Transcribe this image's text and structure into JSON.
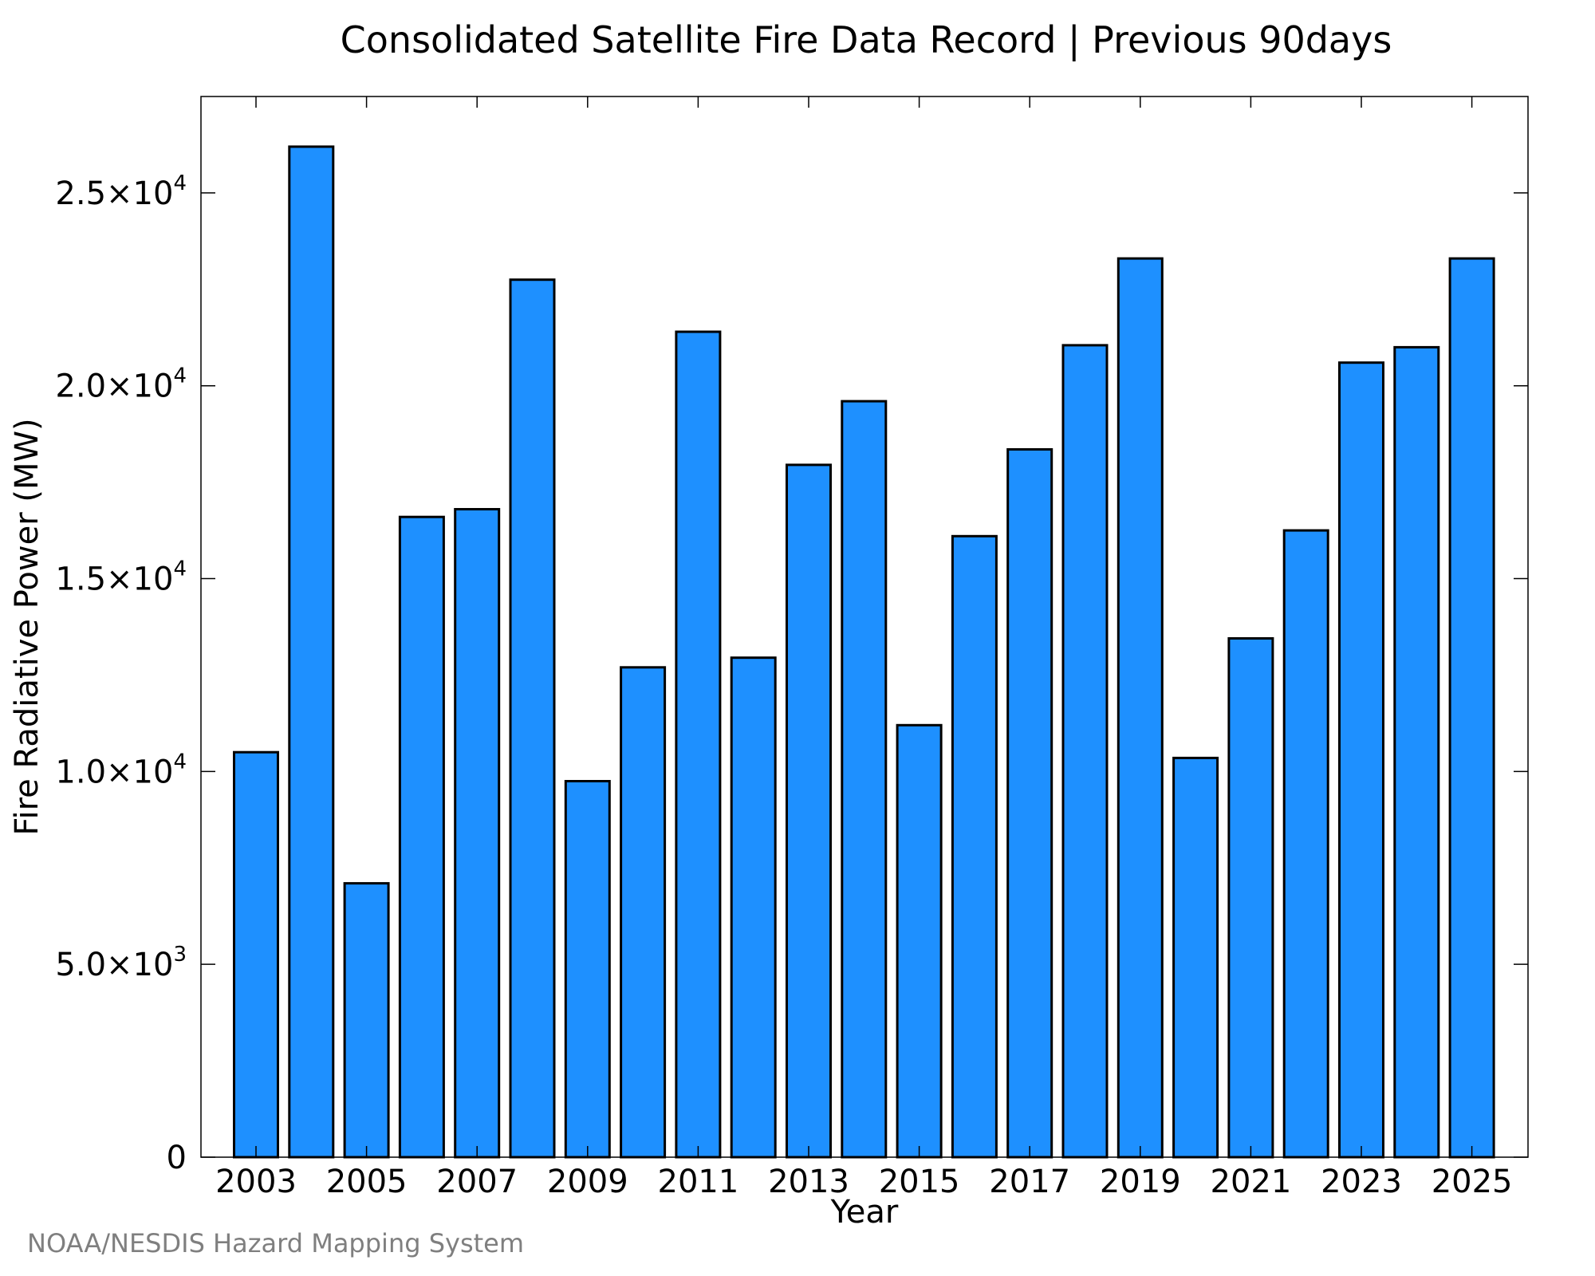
{
  "chart_data": {
    "type": "bar",
    "title": "Consolidated Satellite Fire Data Record | Previous 90days",
    "xlabel": "Year",
    "ylabel": "Fire Radiative Power (MW)",
    "categories": [
      "2003",
      "2004",
      "2005",
      "2006",
      "2007",
      "2008",
      "2009",
      "2010",
      "2011",
      "2012",
      "2013",
      "2014",
      "2015",
      "2016",
      "2017",
      "2018",
      "2019",
      "2020",
      "2021",
      "2022",
      "2023",
      "2024",
      "2025"
    ],
    "values": [
      10500,
      26200,
      7100,
      16600,
      16800,
      22750,
      9750,
      12700,
      21400,
      12950,
      17950,
      19600,
      11200,
      16100,
      18350,
      21050,
      23300,
      10350,
      13450,
      16250,
      20600,
      21000,
      23300
    ],
    "x_tick_labels": [
      "2003",
      "2005",
      "2007",
      "2009",
      "2011",
      "2013",
      "2015",
      "2017",
      "2019",
      "2021",
      "2023",
      "2025"
    ],
    "ylim": [
      0,
      27500
    ],
    "y_ticks": [
      {
        "value": 0,
        "mantissa": "0",
        "exp": ""
      },
      {
        "value": 5000,
        "mantissa": "5.0×10",
        "exp": "3"
      },
      {
        "value": 10000,
        "mantissa": "1.0×10",
        "exp": "4"
      },
      {
        "value": 15000,
        "mantissa": "1.5×10",
        "exp": "4"
      },
      {
        "value": 20000,
        "mantissa": "2.0×10",
        "exp": "4"
      },
      {
        "value": 25000,
        "mantissa": "2.5×10",
        "exp": "4"
      }
    ],
    "bar_color": "#1e90ff",
    "edge_color": "#000000",
    "grid": false,
    "legend": "none"
  },
  "credit": "NOAA/NESDIS Hazard Mapping System"
}
